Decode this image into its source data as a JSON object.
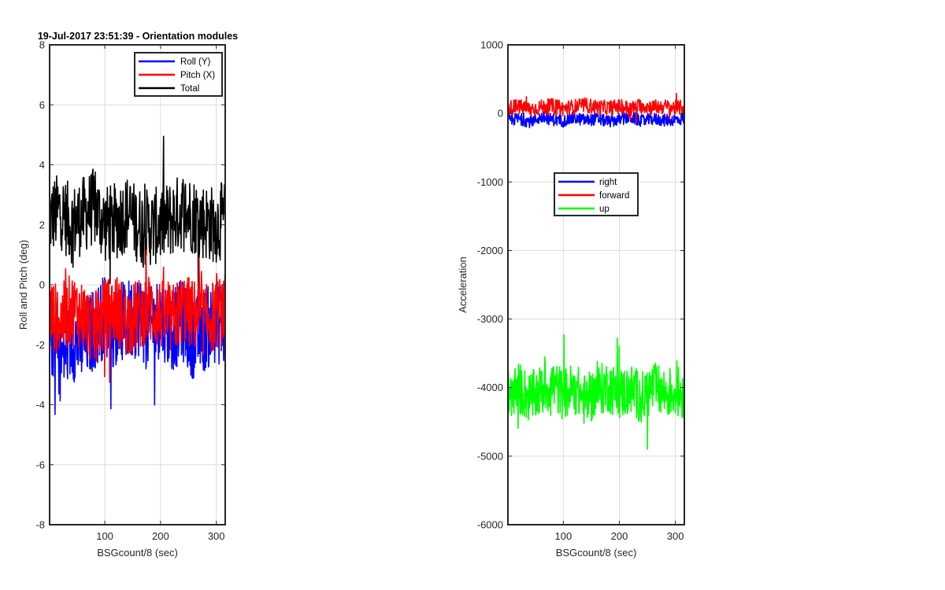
{
  "chart_data": [
    {
      "type": "line",
      "title": "19-Jul-2017 23:51:39 - Orientation modules",
      "xlabel": "BSGcount/8 (sec)",
      "ylabel": "Roll and Pitch (deg)",
      "xlim": [
        1,
        316
      ],
      "ylim": [
        -8,
        8
      ],
      "xticks": [
        100,
        200,
        300
      ],
      "yticks": [
        -8,
        -6,
        -4,
        -2,
        0,
        2,
        4,
        6,
        8
      ],
      "grid": true,
      "legend_position": "top-right",
      "series": [
        {
          "name": "Roll (Y)",
          "color": "#0000ff",
          "x": [
            1,
            20,
            40,
            60,
            80,
            100,
            120,
            140,
            160,
            180,
            200,
            220,
            240,
            260,
            280,
            300,
            316
          ],
          "values": [
            -1.5,
            -2.5,
            -1.8,
            -2.0,
            -1.5,
            -1.0,
            -1.5,
            -1.2,
            -1.0,
            -1.5,
            -1.0,
            -1.5,
            -1.2,
            -1.8,
            -1.5,
            -1.2,
            -1.5
          ]
        },
        {
          "name": "Pitch (X)",
          "color": "#ff0000",
          "x": [
            1,
            20,
            40,
            60,
            80,
            100,
            120,
            140,
            160,
            180,
            200,
            220,
            240,
            260,
            280,
            300,
            316
          ],
          "values": [
            -1.0,
            -1.2,
            -0.8,
            -1.0,
            -1.5,
            -1.0,
            -0.8,
            -1.2,
            -1.0,
            -0.8,
            -1.0,
            -1.2,
            -0.8,
            -1.0,
            -1.2,
            -1.0,
            -0.8
          ]
        },
        {
          "name": "Total",
          "color": "#000000",
          "x": [
            1,
            20,
            40,
            60,
            80,
            100,
            120,
            140,
            160,
            180,
            200,
            220,
            240,
            260,
            280,
            300,
            316
          ],
          "values": [
            2.2,
            2.5,
            2.0,
            2.3,
            2.6,
            2.0,
            2.1,
            2.4,
            2.0,
            1.9,
            2.0,
            2.2,
            2.5,
            2.3,
            2.1,
            2.0,
            2.2
          ]
        }
      ]
    },
    {
      "type": "line",
      "title": "",
      "xlabel": "BSGcount/8 (sec)",
      "ylabel": "Acceleration",
      "xlim": [
        1,
        316
      ],
      "ylim": [
        -6000,
        1000
      ],
      "xticks": [
        100,
        200,
        300
      ],
      "yticks": [
        -6000,
        -5000,
        -4000,
        -3000,
        -2000,
        -1000,
        0,
        1000
      ],
      "grid": true,
      "legend_position": "upper-center",
      "series": [
        {
          "name": "right",
          "color": "#0000ff",
          "x": [
            1,
            20,
            40,
            60,
            80,
            100,
            120,
            140,
            160,
            180,
            200,
            220,
            240,
            260,
            280,
            300,
            316
          ],
          "values": [
            -100,
            -80,
            -120,
            -60,
            -90,
            -110,
            -70,
            -100,
            -80,
            -120,
            -90,
            -60,
            -110,
            -80,
            -100,
            -90,
            -80
          ]
        },
        {
          "name": "forward",
          "color": "#ff0000",
          "x": [
            1,
            20,
            40,
            60,
            80,
            100,
            120,
            140,
            160,
            180,
            200,
            220,
            240,
            260,
            280,
            300,
            316
          ],
          "values": [
            80,
            100,
            60,
            90,
            110,
            70,
            100,
            120,
            90,
            80,
            100,
            70,
            110,
            90,
            100,
            80,
            90
          ]
        },
        {
          "name": "up",
          "color": "#00ff00",
          "x": [
            1,
            20,
            40,
            60,
            80,
            100,
            120,
            140,
            160,
            180,
            200,
            220,
            240,
            260,
            280,
            300,
            316
          ],
          "values": [
            -4100,
            -4000,
            -4150,
            -4050,
            -3950,
            -4100,
            -4000,
            -4200,
            -4050,
            -3980,
            -4100,
            -4020,
            -4150,
            -4000,
            -4080,
            -4050,
            -4100
          ]
        }
      ]
    }
  ]
}
